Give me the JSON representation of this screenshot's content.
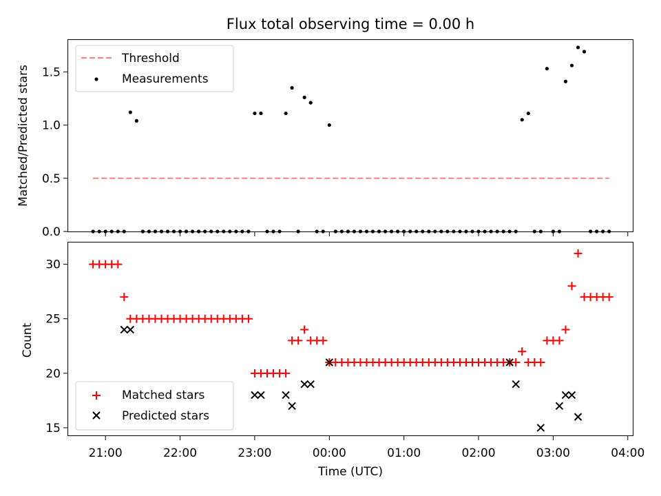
{
  "colors": {
    "threshold": "#ff7f7f",
    "measurement": "#000000",
    "matched": "#ff0000",
    "predicted": "#000000",
    "axes": "#000000"
  },
  "chart_data": [
    {
      "type": "scatter",
      "panel": "top",
      "title": "Flux total observing time = 0.00 h",
      "xlabel": "",
      "ylabel": "Matched/Predicted stars",
      "xlim": [
        "20:30",
        "04:04"
      ],
      "ylim": [
        0,
        1.8
      ],
      "yticks": [
        0.0,
        0.5,
        1.0,
        1.5
      ],
      "yticklabels": [
        "0.0",
        "0.5",
        "1.0",
        "1.5"
      ],
      "legend_position": "top-left",
      "threshold": {
        "name": "Threshold",
        "value": 0.5,
        "x_start": "20:50",
        "x_end": "03:45",
        "style": "dashed"
      },
      "series": [
        {
          "name": "Measurements",
          "x": [
            "20:50",
            "20:55",
            "21:00",
            "21:05",
            "21:10",
            "21:15",
            "21:20",
            "21:25",
            "21:30",
            "21:35",
            "21:40",
            "21:45",
            "21:50",
            "21:55",
            "22:00",
            "22:05",
            "22:10",
            "22:15",
            "22:20",
            "22:25",
            "22:30",
            "22:35",
            "22:40",
            "22:45",
            "22:50",
            "22:55",
            "23:00",
            "23:05",
            "23:10",
            "23:15",
            "23:20",
            "23:25",
            "23:30",
            "23:35",
            "23:40",
            "23:45",
            "23:50",
            "23:55",
            "00:00",
            "00:05",
            "00:10",
            "00:15",
            "00:20",
            "00:25",
            "00:30",
            "00:35",
            "00:40",
            "00:45",
            "00:50",
            "00:55",
            "01:00",
            "01:05",
            "01:10",
            "01:15",
            "01:20",
            "01:25",
            "01:30",
            "01:35",
            "01:40",
            "01:45",
            "01:50",
            "01:55",
            "02:00",
            "02:05",
            "02:10",
            "02:15",
            "02:20",
            "02:25",
            "02:30",
            "02:35",
            "02:40",
            "02:45",
            "02:50",
            "02:55",
            "03:00",
            "03:05",
            "03:10",
            "03:15",
            "03:20",
            "03:25",
            "03:30",
            "03:35",
            "03:40",
            "03:45"
          ],
          "y": [
            0,
            0,
            0,
            0,
            0,
            0,
            1.12,
            1.04,
            0,
            0,
            0,
            0,
            0,
            0,
            0,
            0,
            0,
            0,
            0,
            0,
            0,
            0,
            0,
            0,
            0,
            0,
            1.11,
            1.11,
            0,
            0,
            0,
            1.11,
            1.35,
            0,
            1.26,
            1.21,
            0,
            0,
            1.0,
            0,
            0,
            0,
            0,
            0,
            0,
            0,
            0,
            0,
            0,
            0,
            0,
            0,
            0,
            0,
            0,
            0,
            0,
            0,
            0,
            0,
            0,
            0,
            0,
            0,
            0,
            0,
            0,
            0,
            0,
            1.05,
            1.11,
            0,
            0,
            1.53,
            0,
            0,
            1.41,
            1.56,
            1.73,
            1.69,
            0,
            0,
            0,
            0
          ]
        }
      ]
    },
    {
      "type": "scatter",
      "panel": "bottom",
      "title": "",
      "xlabel": "Time (UTC)",
      "ylabel": "Count",
      "xlim": [
        "20:30",
        "04:04"
      ],
      "ylim": [
        14.3,
        32.0
      ],
      "yticks": [
        15,
        20,
        25,
        30
      ],
      "xticks": [
        "21:00",
        "22:00",
        "23:00",
        "00:00",
        "01:00",
        "02:00",
        "03:00",
        "04:00"
      ],
      "legend_position": "lower-left",
      "series": [
        {
          "name": "Matched stars",
          "marker": "plus",
          "x": [
            "20:50",
            "20:55",
            "21:00",
            "21:05",
            "21:10",
            "21:15",
            "21:20",
            "21:25",
            "21:30",
            "21:35",
            "21:40",
            "21:45",
            "21:50",
            "21:55",
            "22:00",
            "22:05",
            "22:10",
            "22:15",
            "22:20",
            "22:25",
            "22:30",
            "22:35",
            "22:40",
            "22:45",
            "22:50",
            "22:55",
            "23:00",
            "23:05",
            "23:10",
            "23:15",
            "23:20",
            "23:25",
            "23:30",
            "23:35",
            "23:40",
            "23:45",
            "23:50",
            "23:55",
            "00:00",
            "00:05",
            "00:10",
            "00:15",
            "00:20",
            "00:25",
            "00:30",
            "00:35",
            "00:40",
            "00:45",
            "00:50",
            "00:55",
            "01:00",
            "01:05",
            "01:10",
            "01:15",
            "01:20",
            "01:25",
            "01:30",
            "01:35",
            "01:40",
            "01:45",
            "01:50",
            "01:55",
            "02:00",
            "02:05",
            "02:10",
            "02:15",
            "02:20",
            "02:25",
            "02:30",
            "02:35",
            "02:40",
            "02:45",
            "02:50",
            "02:55",
            "03:00",
            "03:05",
            "03:10",
            "03:15",
            "03:20",
            "03:25",
            "03:30",
            "03:35",
            "03:40",
            "03:45"
          ],
          "y": [
            30,
            30,
            30,
            30,
            30,
            27,
            25,
            25,
            25,
            25,
            25,
            25,
            25,
            25,
            25,
            25,
            25,
            25,
            25,
            25,
            25,
            25,
            25,
            25,
            25,
            25,
            20,
            20,
            20,
            20,
            20,
            20,
            23,
            23,
            24,
            23,
            23,
            23,
            21,
            21,
            21,
            21,
            21,
            21,
            21,
            21,
            21,
            21,
            21,
            21,
            21,
            21,
            21,
            21,
            21,
            21,
            21,
            21,
            21,
            21,
            21,
            21,
            21,
            21,
            21,
            21,
            21,
            21,
            21,
            22,
            21,
            21,
            21,
            23,
            23,
            23,
            24,
            28,
            31,
            27,
            27,
            27,
            27,
            27
          ]
        },
        {
          "name": "Predicted stars",
          "marker": "x",
          "x": [
            "21:15",
            "21:20",
            "23:00",
            "23:05",
            "23:25",
            "23:30",
            "23:40",
            "23:45",
            "00:00",
            "02:25",
            "02:30",
            "02:50",
            "03:05",
            "03:10",
            "03:15",
            "03:20"
          ],
          "y": [
            24,
            24,
            18,
            18,
            18,
            17,
            19,
            19,
            21,
            21,
            19,
            15,
            17,
            18,
            18,
            16
          ]
        }
      ]
    }
  ]
}
